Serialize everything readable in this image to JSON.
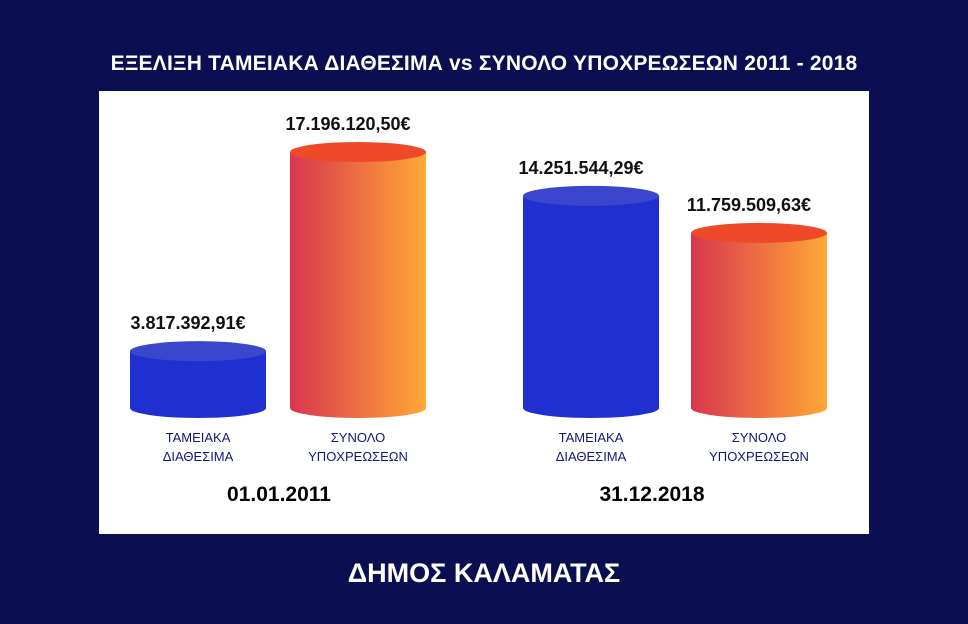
{
  "header": {
    "title": "ΕΞΕΛΙΞΗ ΤΑΜΕΙΑΚΑ ΔΙΑΘΕΣΙΜΑ vs  ΣΥΝΟΛΟ ΥΠΟΧΡΕΩΣΕΩΝ 2011 - 2018"
  },
  "footer": {
    "text": "ΔΗΜΟΣ ΚΑΛΑΜΑΤΑΣ"
  },
  "colors": {
    "background": "#0b0f52",
    "panel": "#ffffff",
    "cash_bar": "#1f2fd0",
    "cash_top": "#3a47cc",
    "liabilities_gradient_start": "#d9364f",
    "liabilities_gradient_end": "#ffa836",
    "liabilities_top": "#ee4a2a",
    "category_text": "#14167a"
  },
  "chart_data": {
    "type": "bar",
    "style": "3d-cylinder",
    "groups": [
      {
        "label": "01.01.2011",
        "bars": [
          {
            "category_lines": [
              "ΤΑΜΕΙΑΚΑ",
              "ΔΙΑΘΕΣΙΜΑ"
            ],
            "value": 3817392.91,
            "value_label": "3.817.392,91€",
            "kind": "cash"
          },
          {
            "category_lines": [
              "ΣΥΝΟΛΟ",
              "ΥΠΟΧΡΕΩΣΕΩΝ"
            ],
            "value": 17196120.5,
            "value_label": "17.196.120,50€",
            "kind": "liabilities"
          }
        ]
      },
      {
        "label": "31.12.2018",
        "bars": [
          {
            "category_lines": [
              "ΤΑΜΕΙΑΚΑ",
              "ΔΙΑΘΕΣΙΜΑ"
            ],
            "value": 14251544.29,
            "value_label": "14.251.544,29€",
            "kind": "cash"
          },
          {
            "category_lines": [
              "ΣΥΝΟΛΟ",
              "ΥΠΟΧΡΕΩΣΕΩΝ"
            ],
            "value": 11759509.63,
            "value_label": "11.759.509,63€",
            "kind": "liabilities"
          }
        ]
      }
    ],
    "title": "ΕΞΕΛΙΞΗ ΤΑΜΕΙΑΚΑ ΔΙΑΘΕΣΙΜΑ vs  ΣΥΝΟΛΟ ΥΠΟΧΡΕΩΣΕΩΝ 2011 - 2018",
    "xlabel": "",
    "ylabel": "",
    "grid": false
  }
}
